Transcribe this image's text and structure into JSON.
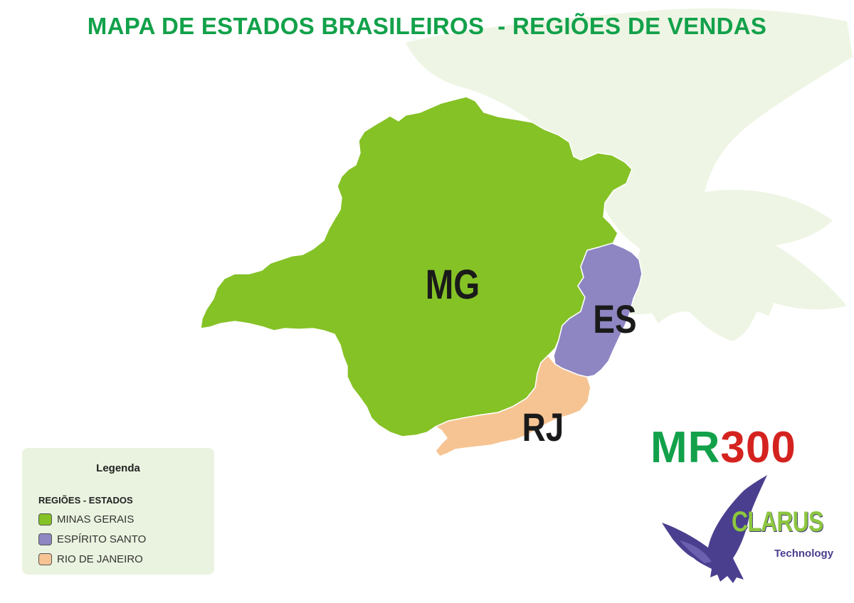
{
  "title": "MAPA DE ESTADOS BRASILEIROS  - REGIÕES DE VENDAS",
  "map": {
    "regions": [
      {
        "id": "mg",
        "label": "MG",
        "color": "#85c226"
      },
      {
        "id": "es",
        "label": "ES",
        "color": "#8e86c2"
      },
      {
        "id": "rj",
        "label": "RJ",
        "color": "#f6c493"
      }
    ]
  },
  "legend": {
    "title": "Legenda",
    "subtitle": "REGIÕES - ESTADOS",
    "items": [
      {
        "label": "MINAS GERAIS",
        "color": "#85c226"
      },
      {
        "label": "ESPÍRITO SANTO",
        "color": "#8e86c2"
      },
      {
        "label": "RIO DE JANEIRO",
        "color": "#f6c493"
      }
    ]
  },
  "branding": {
    "product_prefix": "MR",
    "product_number": "300",
    "company": "CLARUS",
    "company_tagline": "Technology",
    "colors": {
      "green": "#12a14a",
      "red": "#d4231f",
      "purple": "#4a3f8f"
    },
    "watermark_icon": "eagle-icon"
  }
}
